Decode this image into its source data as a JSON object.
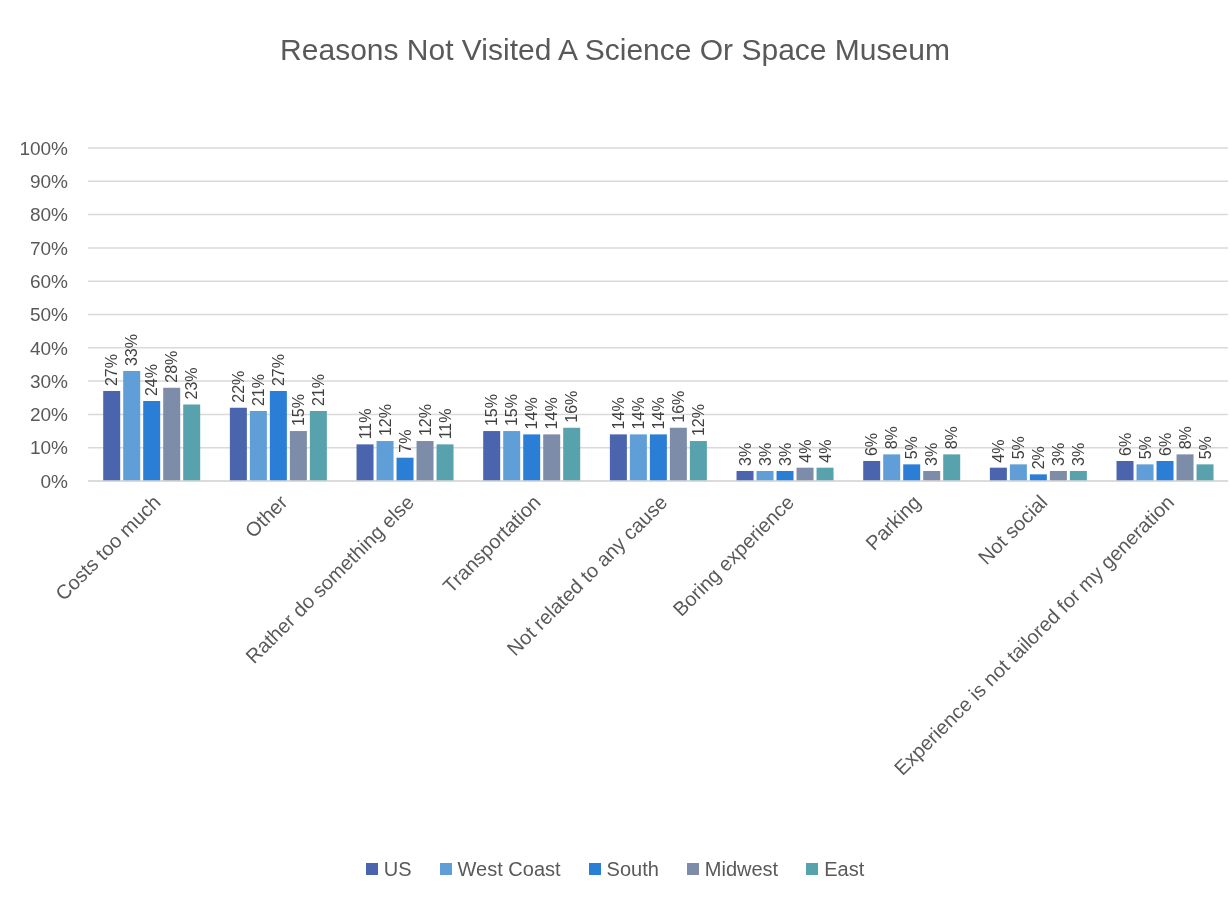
{
  "chart_data": {
    "type": "bar",
    "title": "Reasons Not Visited A Science Or Space Museum",
    "categories": [
      "Costs too much",
      "Other",
      "Rather do something else",
      "Transportation",
      "Not related to any cause",
      "Boring experience",
      "Parking",
      "Not social",
      "Experience is not tailored for my generation"
    ],
    "series": [
      {
        "name": "US",
        "color": "#4a64ad",
        "values": [
          27,
          22,
          11,
          15,
          14,
          3,
          6,
          4,
          6
        ],
        "value_labels": [
          "27%",
          "22%",
          "11%",
          "15%",
          "14%",
          "3%",
          "6%",
          "4%",
          "6%"
        ]
      },
      {
        "name": "West Coast",
        "color": "#5f9ed6",
        "values": [
          33,
          21,
          12,
          15,
          14,
          3,
          8,
          5,
          5
        ],
        "value_labels": [
          "33%",
          "21%",
          "12%",
          "15%",
          "14%",
          "3%",
          "8%",
          "5%",
          "5%"
        ]
      },
      {
        "name": "South",
        "color": "#2b7ed6",
        "values": [
          24,
          27,
          7,
          14,
          14,
          3,
          5,
          2,
          6
        ],
        "value_labels": [
          "24%",
          "27%",
          "7%",
          "14%",
          "14%",
          "3%",
          "5%",
          "2%",
          "6%"
        ]
      },
      {
        "name": "Midwest",
        "color": "#7d8ca9",
        "values": [
          28,
          15,
          12,
          14,
          16,
          4,
          3,
          3,
          8
        ],
        "value_labels": [
          "28%",
          "15%",
          "12%",
          "14%",
          "16%",
          "4%",
          "3%",
          "3%",
          "8%"
        ]
      },
      {
        "name": "East",
        "color": "#58a2ad",
        "values": [
          23,
          21,
          11,
          16,
          12,
          4,
          8,
          3,
          5
        ],
        "value_labels": [
          "23%",
          "21%",
          "11%",
          "16%",
          "12%",
          "4%",
          "8%",
          "3%",
          "5%"
        ]
      }
    ],
    "ylim": [
      0,
      100
    ],
    "yticks": [
      {
        "value": 0,
        "label": "0%"
      },
      {
        "value": 10,
        "label": "10%"
      },
      {
        "value": 20,
        "label": "20%"
      },
      {
        "value": 30,
        "label": "30%"
      },
      {
        "value": 40,
        "label": "40%"
      },
      {
        "value": 50,
        "label": "50%"
      },
      {
        "value": 60,
        "label": "60%"
      },
      {
        "value": 70,
        "label": "70%"
      },
      {
        "value": 80,
        "label": "80%"
      },
      {
        "value": 90,
        "label": "90%"
      },
      {
        "value": 100,
        "label": "100%"
      }
    ],
    "grid": "y",
    "legend": "bottom"
  }
}
